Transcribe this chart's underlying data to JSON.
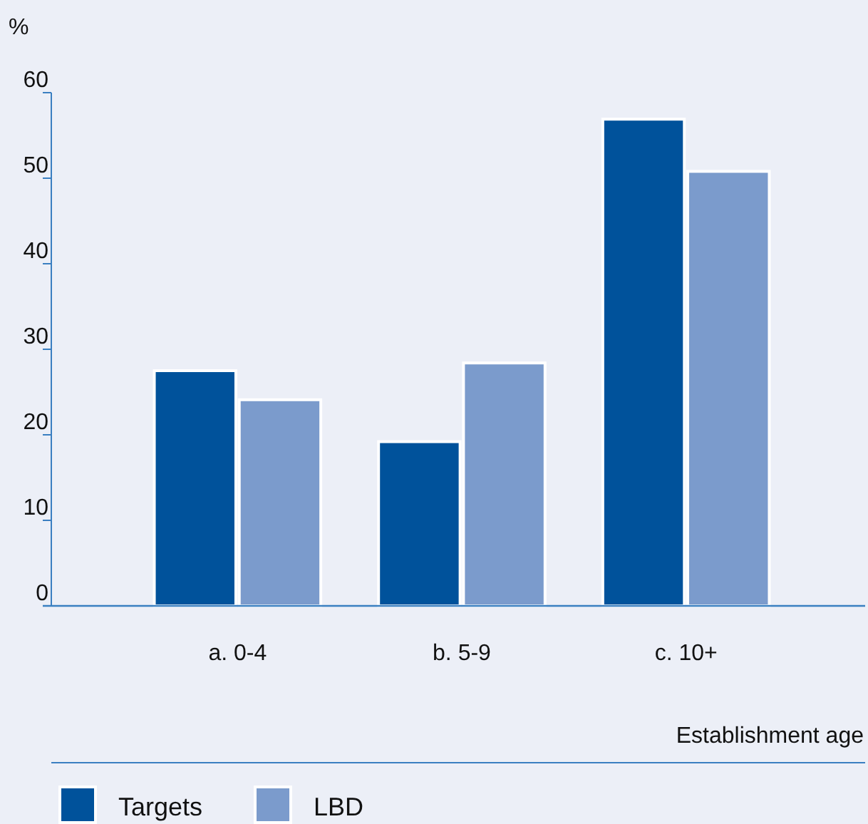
{
  "chart_data": {
    "type": "bar",
    "ylabel": "%",
    "xlabel": "Establishment age",
    "categories": [
      "a. 0-4",
      "b. 5-9",
      "c. 10+"
    ],
    "series": [
      {
        "name": "Targets",
        "color": "#00529b",
        "values": [
          27.5,
          19.2,
          56.9
        ]
      },
      {
        "name": "LBD",
        "color": "#7b9bcc",
        "values": [
          24.1,
          28.4,
          50.8
        ]
      }
    ],
    "ylim": [
      0,
      60
    ],
    "yticks": [
      0,
      10,
      20,
      30,
      40,
      50,
      60
    ],
    "grid": false,
    "legend": "bottom left"
  }
}
